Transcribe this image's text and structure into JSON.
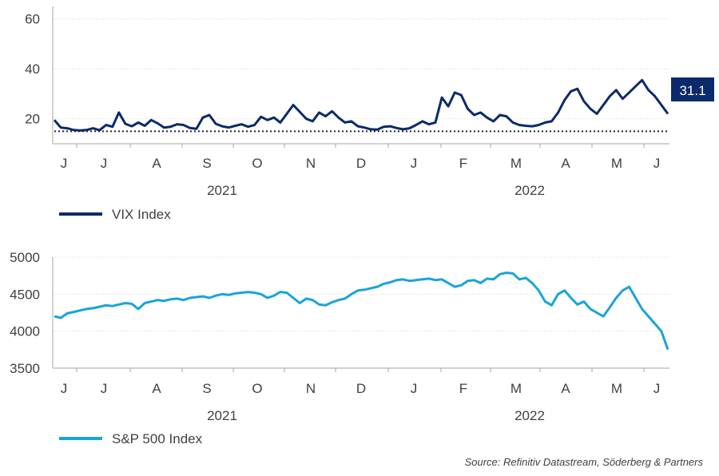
{
  "chart_data": [
    {
      "type": "line",
      "series": [
        {
          "name": "VIX Index",
          "color": "#0b2a6b",
          "x": [
            0,
            4,
            8,
            12,
            16,
            20,
            24,
            28,
            32,
            36,
            40,
            44,
            48,
            52,
            56,
            60,
            64,
            68,
            72,
            76,
            80,
            84,
            88,
            92,
            96,
            100,
            104,
            108,
            112,
            116,
            120,
            124,
            128,
            132,
            136,
            140,
            144,
            148,
            152,
            156,
            160,
            164,
            168,
            172,
            176,
            180,
            184,
            188,
            192,
            196,
            200,
            204,
            208,
            212,
            216,
            220,
            224,
            228,
            232,
            236,
            240,
            244,
            248,
            252,
            256,
            260,
            264,
            268,
            272,
            276,
            280,
            284,
            288,
            292,
            296,
            300,
            304,
            308,
            312,
            316,
            320,
            324,
            328,
            332,
            336,
            340,
            344,
            348,
            352,
            356,
            360,
            364,
            368,
            372,
            376,
            380
          ],
          "values": [
            19.5,
            16.5,
            16.2,
            15.5,
            15.3,
            15.5,
            16.2,
            15.4,
            17.5,
            16.8,
            22.5,
            18.0,
            17.0,
            18.5,
            17.2,
            19.5,
            18.2,
            16.5,
            16.8,
            17.8,
            17.5,
            16.3,
            16.0,
            20.5,
            21.5,
            18.0,
            17.0,
            16.5,
            17.2,
            17.8,
            16.8,
            17.5,
            20.8,
            19.5,
            20.5,
            18.5,
            22.0,
            25.5,
            22.8,
            20.0,
            19.0,
            22.5,
            21.0,
            23.0,
            20.5,
            18.5,
            19.0,
            17.0,
            16.5,
            15.8,
            15.7,
            16.8,
            17.0,
            16.3,
            15.8,
            16.2,
            17.5,
            19.0,
            17.8,
            18.5,
            28.5,
            25.0,
            30.5,
            29.5,
            24.0,
            21.5,
            22.5,
            20.5,
            19.0,
            21.5,
            21.0,
            18.5,
            17.5,
            17.2,
            17.0,
            17.5,
            18.5,
            19.0,
            22.5,
            27.5,
            31.0,
            32.0,
            27.0,
            24.0,
            22.0,
            25.5,
            29.0,
            31.5,
            28.0,
            30.5,
            33.0,
            35.5,
            31.5,
            29.0,
            25.5,
            22.0
          ]
        }
      ],
      "ylim": [
        10,
        65
      ],
      "yticks": [
        20,
        40,
        60
      ],
      "reference_line": 15,
      "callout": "31.1",
      "month_labels": [
        "J",
        "J",
        "A",
        "S",
        "O",
        "N",
        "D",
        "J",
        "F",
        "M",
        "A",
        "M",
        "J"
      ],
      "years": [
        "2021",
        "2022"
      ]
    },
    {
      "type": "line",
      "series": [
        {
          "name": "S&P 500 Index",
          "color": "#1aa3db",
          "x": [
            0,
            4,
            8,
            12,
            16,
            20,
            24,
            28,
            32,
            36,
            40,
            44,
            48,
            52,
            56,
            60,
            64,
            68,
            72,
            76,
            80,
            84,
            88,
            92,
            96,
            100,
            104,
            108,
            112,
            116,
            120,
            124,
            128,
            132,
            136,
            140,
            144,
            148,
            152,
            156,
            160,
            164,
            168,
            172,
            176,
            180,
            184,
            188,
            192,
            196,
            200,
            204,
            208,
            212,
            216,
            220,
            224,
            228,
            232,
            236,
            240,
            244,
            248,
            252,
            256,
            260,
            264,
            268,
            272,
            276,
            280,
            284,
            288,
            292,
            296,
            300,
            304,
            308,
            312,
            316,
            320,
            324,
            328,
            332,
            336,
            340,
            344,
            348,
            352,
            356,
            360,
            364,
            368,
            372,
            376,
            380
          ],
          "values": [
            4200,
            4180,
            4240,
            4260,
            4280,
            4300,
            4310,
            4330,
            4350,
            4340,
            4360,
            4380,
            4370,
            4300,
            4380,
            4400,
            4420,
            4410,
            4430,
            4440,
            4420,
            4450,
            4460,
            4470,
            4450,
            4480,
            4500,
            4490,
            4510,
            4520,
            4530,
            4520,
            4500,
            4450,
            4480,
            4530,
            4520,
            4450,
            4380,
            4440,
            4420,
            4360,
            4350,
            4390,
            4420,
            4440,
            4500,
            4550,
            4560,
            4580,
            4600,
            4640,
            4660,
            4690,
            4700,
            4680,
            4690,
            4700,
            4710,
            4690,
            4700,
            4650,
            4600,
            4620,
            4680,
            4690,
            4650,
            4710,
            4700,
            4770,
            4790,
            4780,
            4700,
            4720,
            4650,
            4550,
            4400,
            4350,
            4500,
            4550,
            4450,
            4360,
            4400,
            4300,
            4250,
            4200,
            4320,
            4450,
            4550,
            4600,
            4450,
            4300,
            4200,
            4100,
            4000,
            3750
          ]
        }
      ],
      "ylim": [
        3500,
        5000
      ],
      "yticks": [
        3500,
        4000,
        4500,
        5000
      ],
      "month_labels": [
        "J",
        "J",
        "A",
        "S",
        "O",
        "N",
        "D",
        "J",
        "F",
        "M",
        "A",
        "M",
        "J"
      ],
      "years": [
        "2021",
        "2022"
      ]
    }
  ],
  "legend": {
    "vix_label": "VIX Index",
    "spx_label": "S&P 500 Index"
  },
  "source": "Source: Refinitiv Datastream, Söderberg & Partners"
}
